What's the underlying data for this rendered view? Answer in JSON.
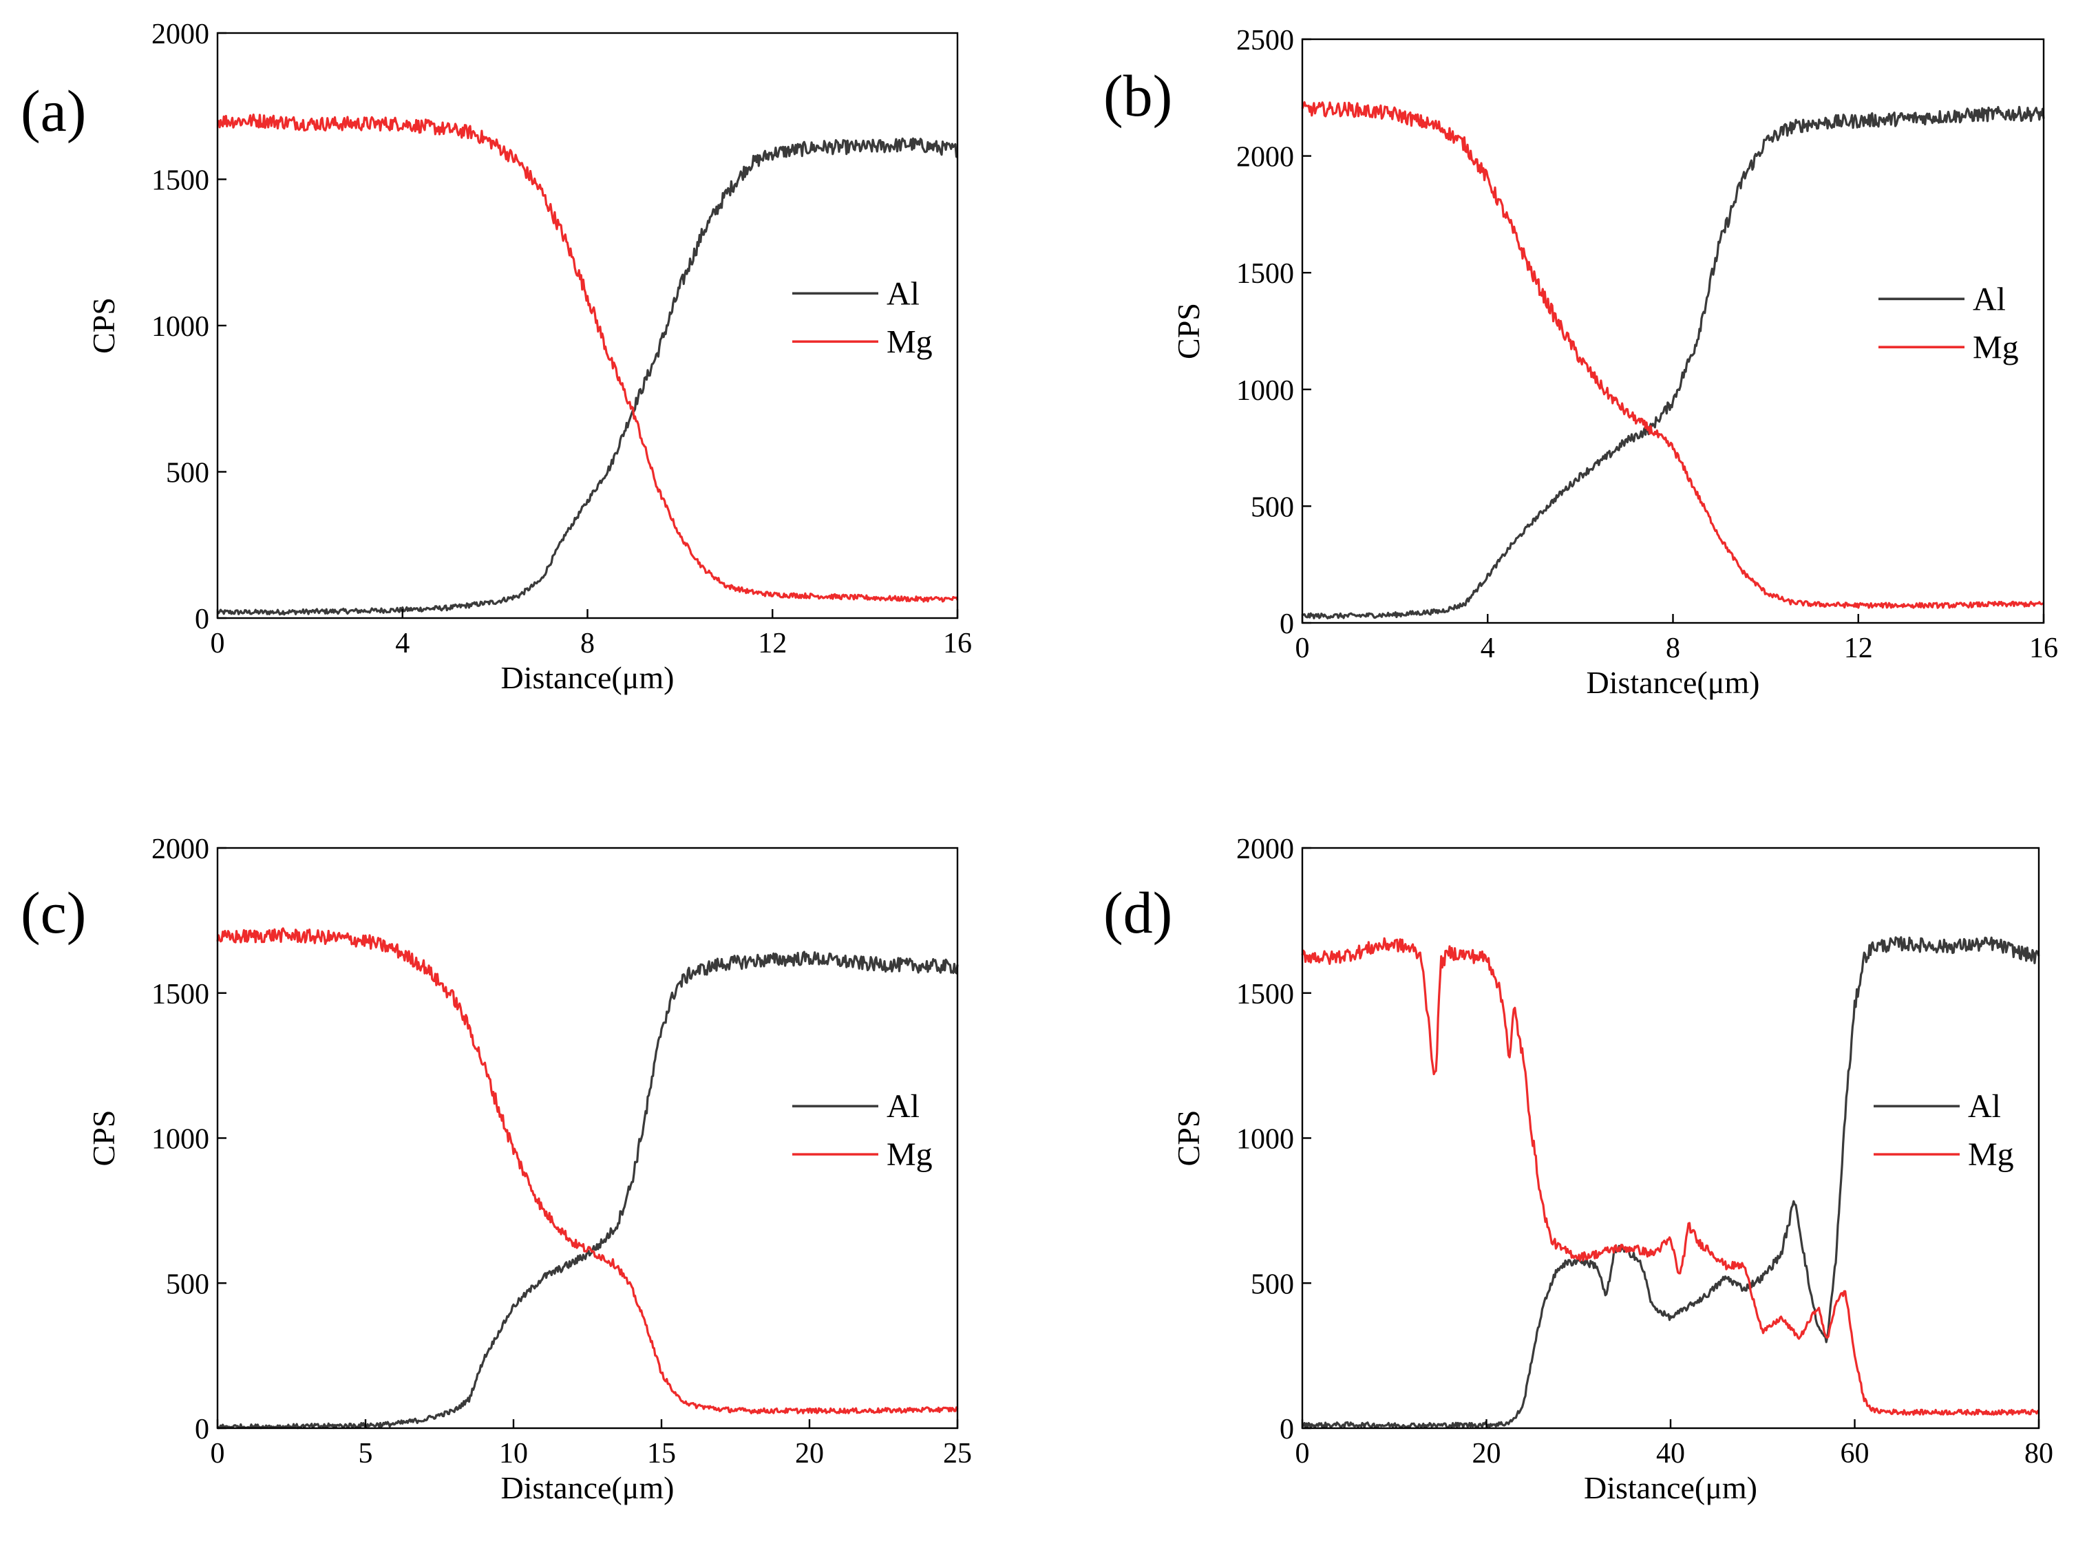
{
  "figure": {
    "panel_count": 4
  },
  "colors": {
    "Al": "#3a3a3a",
    "Mg": "#ee2b2b",
    "axis": "#000000"
  },
  "chart_data": [
    {
      "type": "line",
      "panel": "(a)",
      "xlabel": "Distance(μm)",
      "ylabel": "CPS",
      "xlim": [
        0,
        16
      ],
      "ylim": [
        0,
        2000
      ],
      "xticks": [
        0,
        4,
        8,
        12,
        16
      ],
      "yticks": [
        0,
        500,
        1000,
        1500,
        2000
      ],
      "legend": {
        "placement": "center-right"
      },
      "series": [
        {
          "name": "Al",
          "x": [
            0,
            1,
            2,
            3,
            4,
            5,
            6,
            6.5,
            7,
            7.5,
            8,
            8.5,
            9,
            9.5,
            10,
            10.5,
            11,
            11.5,
            12,
            13,
            14,
            15,
            16
          ],
          "values": [
            20,
            20,
            22,
            24,
            28,
            35,
            55,
            75,
            130,
            280,
            400,
            520,
            720,
            900,
            1130,
            1320,
            1450,
            1550,
            1590,
            1610,
            1610,
            1620,
            1600
          ]
        },
        {
          "name": "Mg",
          "x": [
            0,
            1,
            2,
            3,
            4,
            5,
            5.5,
            6,
            6.5,
            7,
            7.5,
            8,
            8.5,
            9,
            9.5,
            10,
            10.5,
            11,
            11.5,
            12,
            13,
            14,
            15,
            16
          ],
          "values": [
            1700,
            1700,
            1690,
            1690,
            1690,
            1670,
            1660,
            1620,
            1560,
            1460,
            1300,
            1100,
            880,
            700,
            450,
            280,
            170,
            110,
            90,
            80,
            75,
            70,
            65,
            65
          ]
        }
      ]
    },
    {
      "type": "line",
      "panel": "(b)",
      "xlabel": "Distance(μm)",
      "ylabel": "CPS",
      "xlim": [
        0,
        16
      ],
      "ylim": [
        0,
        2500
      ],
      "xticks": [
        0,
        4,
        8,
        12,
        16
      ],
      "yticks": [
        0,
        500,
        1000,
        1500,
        2000,
        2500
      ],
      "legend": {
        "placement": "center-right"
      },
      "series": [
        {
          "name": "Al",
          "x": [
            0,
            1,
            2,
            3,
            3.5,
            4,
            4.5,
            5,
            5.5,
            6,
            6.5,
            7,
            7.5,
            8,
            8.5,
            9,
            9.5,
            10,
            10.5,
            11,
            12,
            13,
            14,
            15,
            16
          ],
          "values": [
            30,
            30,
            35,
            50,
            80,
            200,
            330,
            440,
            540,
            630,
            700,
            780,
            830,
            950,
            1200,
            1620,
            1900,
            2060,
            2120,
            2140,
            2150,
            2160,
            2170,
            2180,
            2180
          ]
        },
        {
          "name": "Mg",
          "x": [
            0,
            1,
            2,
            3,
            3.5,
            4,
            4.5,
            5,
            5.5,
            6,
            6.5,
            7,
            7.5,
            8,
            8.5,
            9,
            9.5,
            10,
            10.5,
            11,
            12,
            13,
            14,
            15,
            16
          ],
          "values": [
            2200,
            2200,
            2180,
            2120,
            2050,
            1900,
            1700,
            1480,
            1290,
            1130,
            1000,
            900,
            830,
            750,
            560,
            370,
            220,
            130,
            90,
            80,
            75,
            75,
            75,
            80,
            80
          ]
        }
      ]
    },
    {
      "type": "line",
      "panel": "(c)",
      "xlabel": "Distance(μm)",
      "ylabel": "CPS",
      "xlim": [
        0,
        25
      ],
      "ylim": [
        0,
        2000
      ],
      "xticks": [
        0,
        5,
        10,
        15,
        20,
        25
      ],
      "yticks": [
        0,
        500,
        1000,
        1500,
        2000
      ],
      "legend": {
        "placement": "center-right"
      },
      "series": [
        {
          "name": "Al",
          "x": [
            0,
            2,
            4,
            5,
            6,
            7,
            8,
            8.5,
            9,
            9.5,
            10,
            11,
            12,
            12.5,
            13,
            13.5,
            14,
            14.5,
            15,
            15.5,
            16,
            17,
            18,
            20,
            22,
            25
          ],
          "values": [
            5,
            5,
            8,
            10,
            15,
            30,
            60,
            100,
            240,
            330,
            420,
            520,
            570,
            600,
            640,
            700,
            850,
            1100,
            1380,
            1520,
            1570,
            1600,
            1610,
            1620,
            1600,
            1590
          ]
        },
        {
          "name": "Mg",
          "x": [
            0,
            2,
            4,
            5,
            6,
            7,
            8,
            8.5,
            9,
            9.5,
            10,
            10.5,
            11,
            12,
            13,
            13.5,
            14,
            14.5,
            15,
            15.5,
            16,
            17,
            18,
            20,
            22,
            25
          ],
          "values": [
            1690,
            1700,
            1690,
            1680,
            1650,
            1590,
            1480,
            1380,
            1250,
            1100,
            960,
            850,
            750,
            640,
            590,
            560,
            480,
            350,
            190,
            110,
            80,
            65,
            60,
            60,
            60,
            65
          ]
        }
      ]
    },
    {
      "type": "line",
      "panel": "(d)",
      "xlabel": "Distance(μm)",
      "ylabel": "CPS",
      "xlim": [
        0,
        80
      ],
      "ylim": [
        0,
        2000
      ],
      "xticks": [
        0,
        20,
        40,
        60,
        80
      ],
      "yticks": [
        0,
        500,
        1000,
        1500,
        2000
      ],
      "legend": {
        "placement": "center-right"
      },
      "series": [
        {
          "name": "Al",
          "x": [
            0,
            5,
            10,
            15,
            20,
            22,
            23,
            24,
            25,
            26,
            27,
            28,
            30,
            32,
            33,
            34,
            36,
            37,
            38,
            40,
            42,
            44,
            46,
            48,
            50,
            52,
            53.5,
            55,
            56,
            57,
            58,
            59,
            60,
            61,
            62,
            65,
            70,
            75,
            80
          ],
          "values": [
            10,
            12,
            10,
            10,
            12,
            15,
            30,
            80,
            250,
            400,
            500,
            560,
            580,
            560,
            450,
            620,
            600,
            550,
            420,
            380,
            420,
            460,
            520,
            480,
            520,
            600,
            790,
            500,
            350,
            300,
            600,
            1100,
            1450,
            1620,
            1660,
            1670,
            1660,
            1670,
            1620
          ]
        },
        {
          "name": "Mg",
          "x": [
            0,
            3,
            6,
            8,
            10,
            12,
            13,
            14,
            14.5,
            15,
            16,
            18,
            20,
            21,
            22,
            22.5,
            23,
            24,
            25,
            26,
            27,
            28,
            30,
            32,
            34,
            36,
            38,
            40,
            41,
            42,
            43,
            44,
            46,
            48,
            50,
            52,
            54,
            56,
            57,
            58,
            59,
            60,
            61,
            62,
            65,
            70,
            75,
            80
          ],
          "values": [
            1630,
            1620,
            1640,
            1660,
            1670,
            1650,
            1620,
            1300,
            1200,
            1600,
            1640,
            1630,
            1620,
            1560,
            1430,
            1260,
            1450,
            1270,
            1000,
            780,
            650,
            620,
            590,
            600,
            620,
            620,
            600,
            650,
            520,
            700,
            640,
            620,
            560,
            560,
            330,
            380,
            310,
            420,
            300,
            440,
            470,
            250,
            100,
            60,
            55,
            55,
            55,
            55
          ]
        }
      ]
    }
  ]
}
